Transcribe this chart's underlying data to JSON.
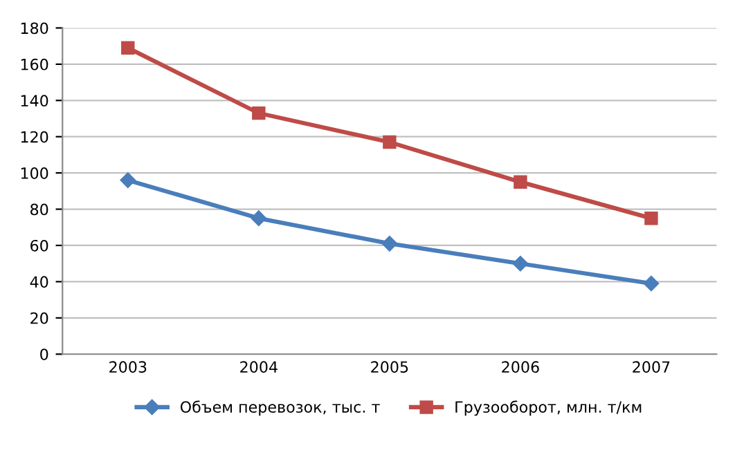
{
  "chart_data": {
    "type": "line",
    "categories": [
      "2003",
      "2004",
      "2005",
      "2006",
      "2007"
    ],
    "series": [
      {
        "name": "Объем перевозок, тыс. т",
        "color": "#4a7ebb",
        "marker": "diamond",
        "values": [
          96,
          75,
          61,
          50,
          39
        ]
      },
      {
        "name": "Грузооборот, млн. т/км",
        "color": "#be4b48",
        "marker": "square",
        "values": [
          169,
          133,
          117,
          95,
          75
        ]
      }
    ],
    "ylim": [
      0,
      180
    ],
    "yticks": [
      0,
      20,
      40,
      60,
      80,
      100,
      120,
      140,
      160,
      180
    ],
    "grid": "y",
    "legend": "bottom",
    "line_style": "solid"
  }
}
